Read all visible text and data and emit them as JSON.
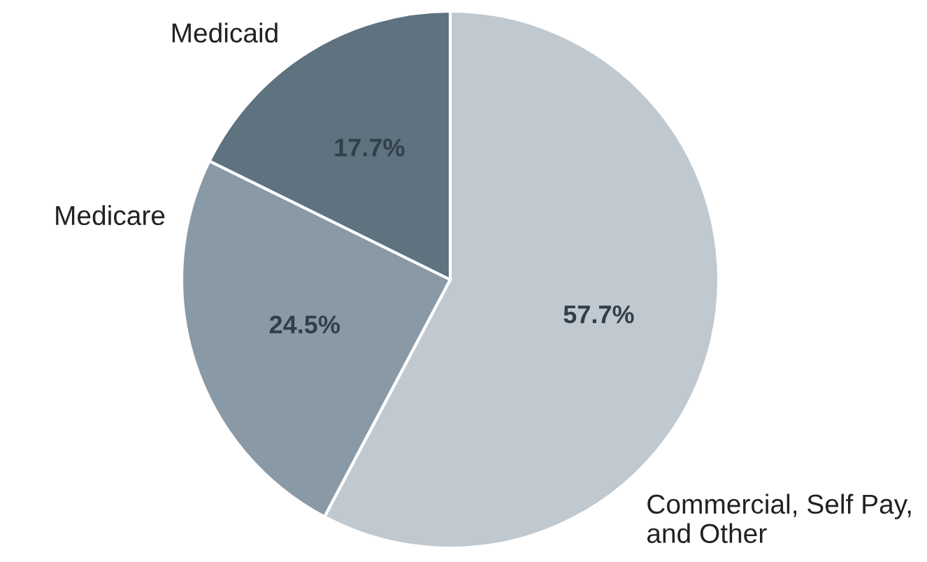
{
  "chart_data": {
    "type": "pie",
    "categories": [
      "Commercial, Self Pay, and Other",
      "Medicare",
      "Medicaid"
    ],
    "values": [
      57.7,
      24.5,
      17.7
    ],
    "colors": [
      "#c0c9d0",
      "#8a99a6",
      "#5e7280"
    ],
    "value_labels": [
      "57.7%",
      "24.5%",
      "17.7%"
    ],
    "legend": false
  }
}
